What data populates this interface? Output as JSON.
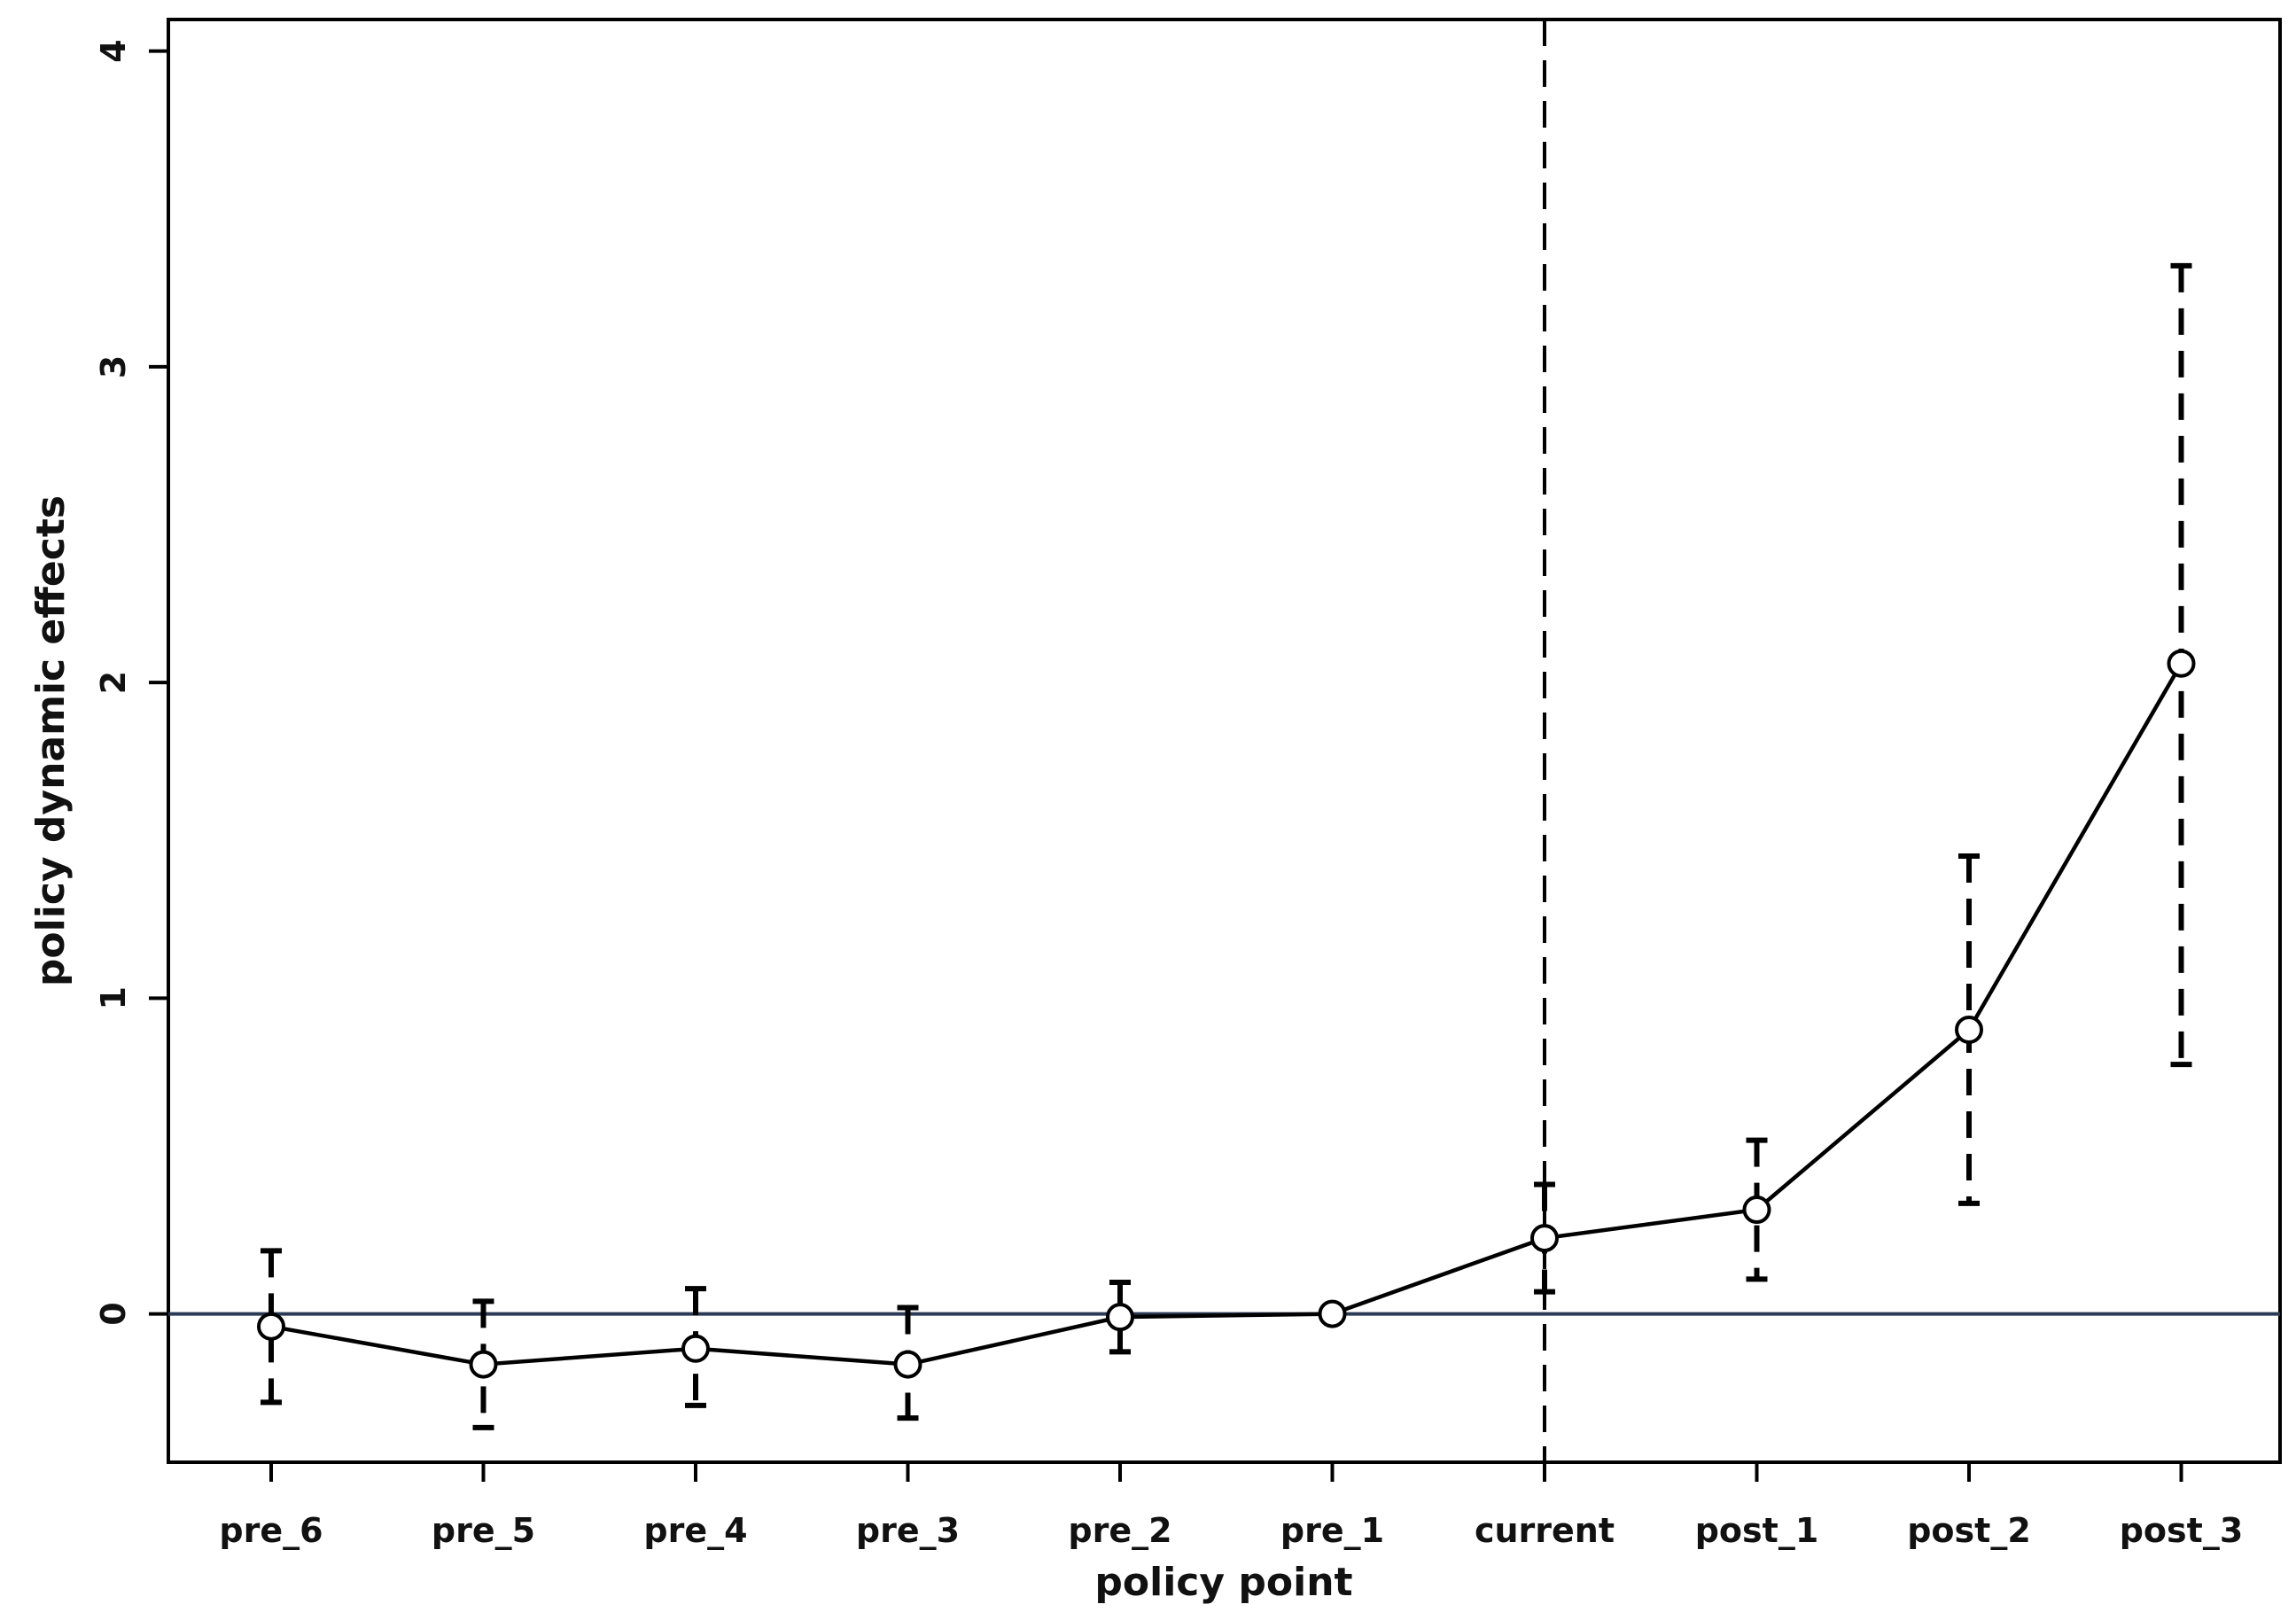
{
  "chart_data": {
    "type": "line",
    "xlabel": "policy point",
    "ylabel": "policy dynamic effects",
    "categories": [
      "pre_6",
      "pre_5",
      "pre_4",
      "pre_3",
      "pre_2",
      "pre_1",
      "current",
      "post_1",
      "post_2",
      "post_3"
    ],
    "values": [
      -0.04,
      -0.16,
      -0.11,
      -0.16,
      -0.01,
      0.0,
      0.24,
      0.33,
      0.9,
      2.06
    ],
    "ci_lower": [
      -0.28,
      -0.36,
      -0.29,
      -0.33,
      -0.12,
      0.0,
      0.07,
      0.11,
      0.35,
      0.79
    ],
    "ci_upper": [
      0.2,
      0.04,
      0.08,
      0.02,
      0.1,
      0.0,
      0.41,
      0.55,
      1.45,
      3.32
    ],
    "ylim": [
      -0.47,
      4.1
    ],
    "yticks": [
      0,
      1,
      2,
      3,
      4
    ],
    "reference_hline": 0,
    "reference_vline_category": "current",
    "grid": false,
    "colors": {
      "line": "#000000",
      "hline": "#2b3a55"
    }
  }
}
